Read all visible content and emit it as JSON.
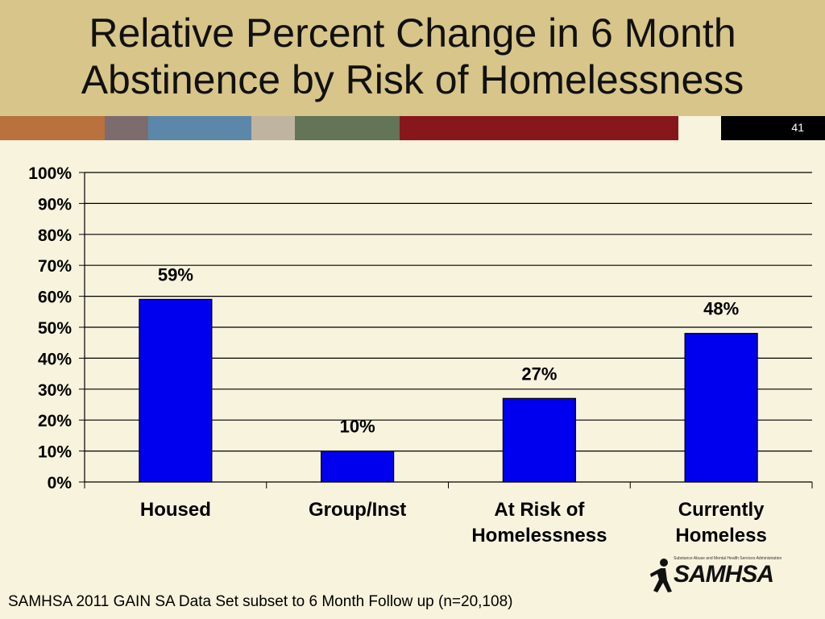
{
  "slide": {
    "title_line1": "Relative Percent Change in 6 Month",
    "title_line2": "Abstinence by Risk of Homelessness",
    "slide_number": "41",
    "footer": "SAMHSA 2011 GAIN SA Data Set subset to 6 Month Follow up (n=20,108)",
    "logo_text": "SAMHSA",
    "logo_tagline": "Substance Abuse and Mental Health Services Administration",
    "stripe_colors": [
      "#b9713e",
      "#7d6c6e",
      "#5c87a9",
      "#bfb4a0",
      "#637457",
      "#87171a"
    ]
  },
  "chart_data": {
    "type": "bar",
    "categories": [
      [
        "Housed"
      ],
      [
        "Group/Inst"
      ],
      [
        "At Risk of",
        "Homelessness"
      ],
      [
        "Currently",
        "Homeless"
      ]
    ],
    "values": [
      59,
      10,
      27,
      48
    ],
    "data_labels": [
      "59%",
      "10%",
      "27%",
      "48%"
    ],
    "y_ticks": [
      "0%",
      "10%",
      "20%",
      "30%",
      "40%",
      "50%",
      "60%",
      "70%",
      "80%",
      "90%",
      "100%"
    ],
    "ylim": [
      0,
      100
    ],
    "bar_color": "#0000ee",
    "grid": true
  }
}
